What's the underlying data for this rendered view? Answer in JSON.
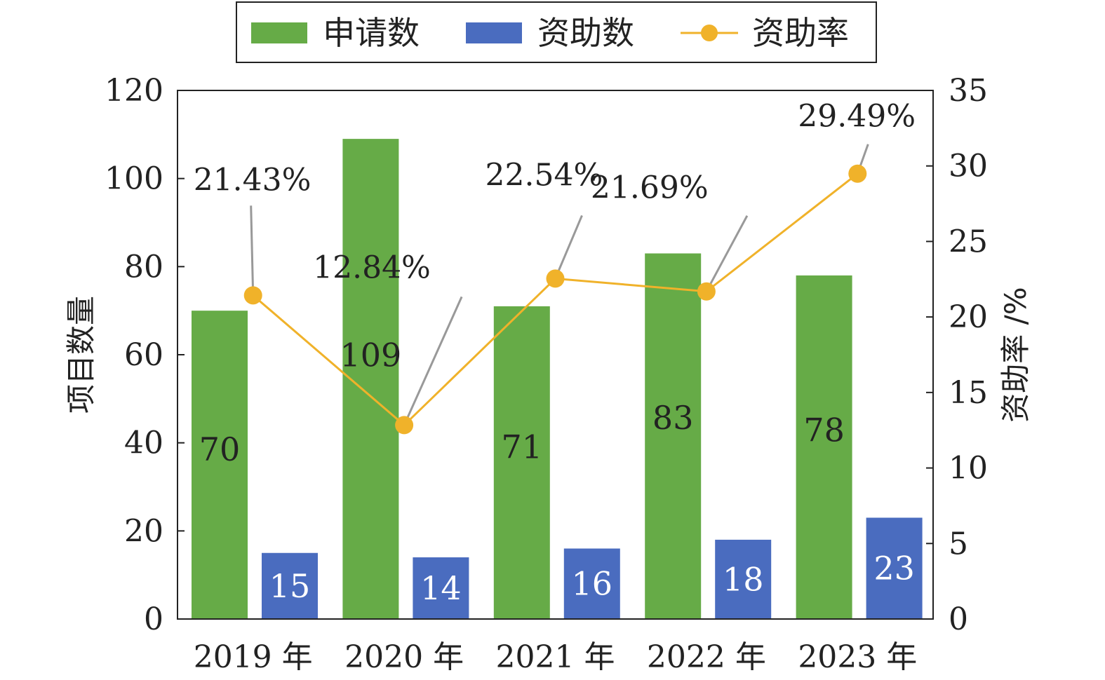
{
  "chart_data": {
    "type": "bar",
    "categories": [
      "2019 年",
      "2020 年",
      "2021 年",
      "2022 年",
      "2023 年"
    ],
    "series": [
      {
        "name": "申请数",
        "type": "bar",
        "axis": "left",
        "color": "#66ab47",
        "values": [
          70,
          109,
          71,
          83,
          78
        ]
      },
      {
        "name": "资助数",
        "type": "bar",
        "axis": "left",
        "color": "#4a6cbf",
        "values": [
          15,
          14,
          16,
          18,
          23
        ]
      },
      {
        "name": "资助率",
        "type": "line",
        "axis": "right",
        "color": "#f0b22a",
        "values": [
          21.43,
          12.84,
          22.54,
          21.69,
          29.49
        ]
      }
    ],
    "rate_labels": [
      "21.43%",
      "12.84%",
      "22.54%",
      "21.69%",
      "29.49%"
    ],
    "ylabel": "项目数量",
    "y2label": "资助率 /%",
    "ylim": [
      0,
      120
    ],
    "y2lim": [
      0,
      35
    ],
    "yticks": [
      0,
      20,
      40,
      60,
      80,
      100,
      120
    ],
    "y2ticks": [
      0,
      5,
      10,
      15,
      20,
      25,
      30,
      35
    ],
    "legend": "top-center",
    "grid": false
  }
}
